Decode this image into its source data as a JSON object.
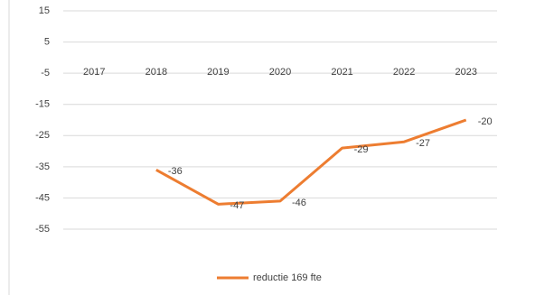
{
  "chart_data": {
    "type": "line",
    "categories": [
      "2017",
      "2018",
      "2019",
      "2020",
      "2021",
      "2022",
      "2023"
    ],
    "series": [
      {
        "name": "reductie 169 fte",
        "color": "#ed7d31",
        "values": [
          null,
          -36,
          -47,
          -46,
          -29,
          -27,
          -20
        ]
      }
    ],
    "ylim": [
      -55,
      15
    ],
    "yticks": [
      15,
      5,
      -5,
      -15,
      -25,
      -35,
      -45,
      -55
    ],
    "grid": true,
    "legend": "bottom"
  }
}
